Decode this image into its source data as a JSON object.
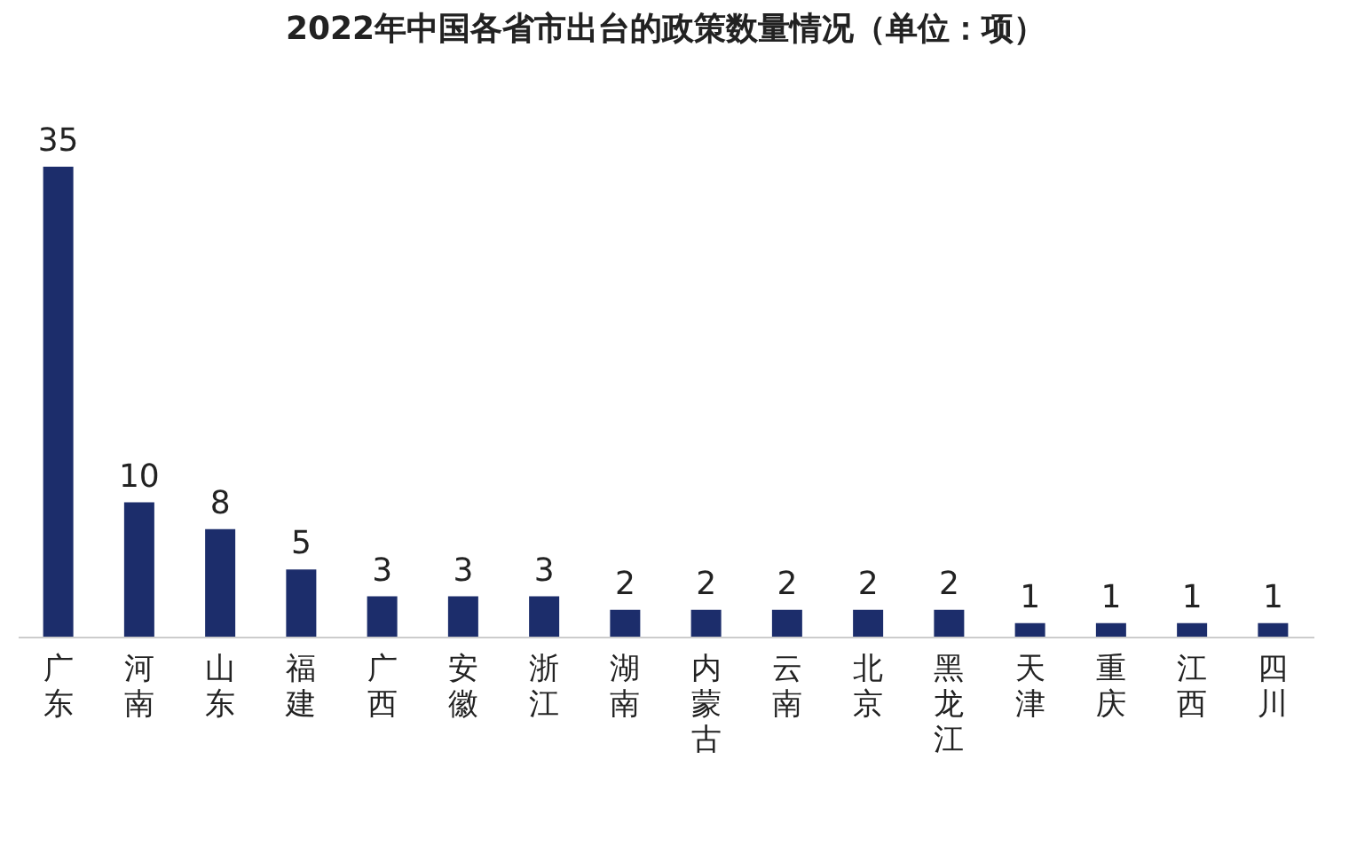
{
  "chart_data": {
    "type": "bar",
    "title": "2022年中国各省市出台的政策数量情况（单位：项）",
    "categories": [
      "广东",
      "河南",
      "山东",
      "福建",
      "广西",
      "安徽",
      "浙江",
      "湖南",
      "内蒙古",
      "云南",
      "北京",
      "黑龙江",
      "天津",
      "重庆",
      "江西",
      "四川"
    ],
    "values": [
      35,
      10,
      8,
      5,
      3,
      3,
      3,
      2,
      2,
      2,
      2,
      2,
      1,
      1,
      1,
      1
    ],
    "color": "#1c2d6b",
    "data_labels": true
  }
}
